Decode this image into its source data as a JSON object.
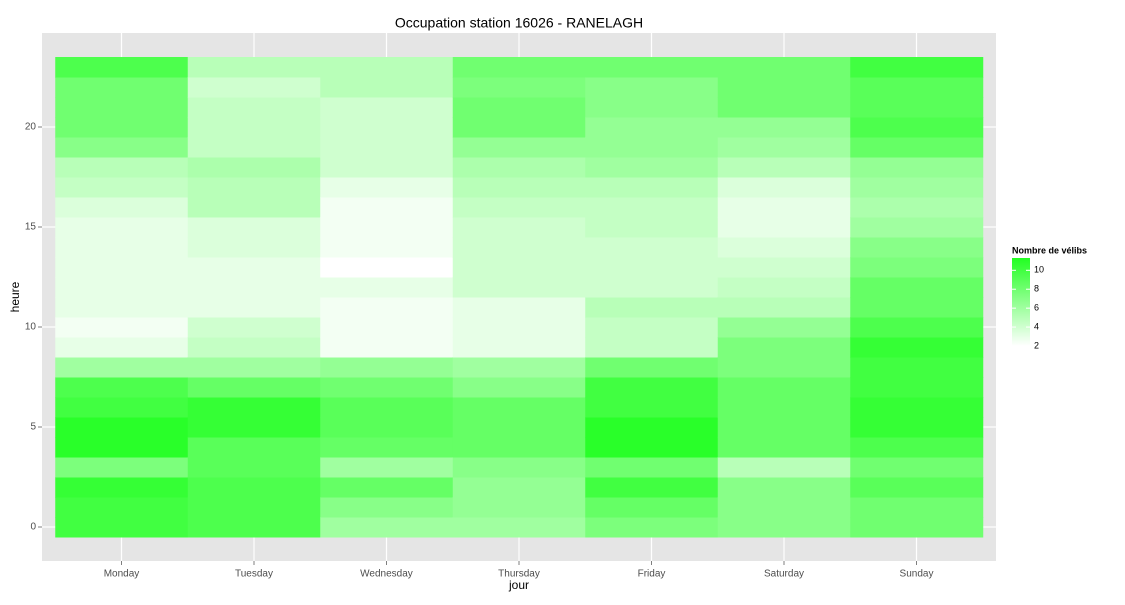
{
  "chart_data": {
    "type": "heatmap",
    "title": "Occupation station 16026 - RANELAGH",
    "x_label": "jour",
    "y_label": "heure",
    "categories": [
      "Monday",
      "Tuesday",
      "Wednesday",
      "Thursday",
      "Friday",
      "Saturday",
      "Sunday"
    ],
    "y": [
      0,
      1,
      2,
      3,
      4,
      5,
      6,
      7,
      8,
      9,
      10,
      11,
      12,
      13,
      14,
      15,
      16,
      17,
      18,
      19,
      20,
      21,
      22,
      23
    ],
    "values": [
      [
        10,
        10,
        10.5,
        7.5,
        11,
        11,
        10,
        9.5,
        6,
        3,
        2.5,
        3,
        3,
        3,
        3,
        3,
        3.5,
        4.5,
        5,
        7,
        8,
        8,
        8,
        9.5
      ],
      [
        9.5,
        9.5,
        9.5,
        9,
        9,
        10.5,
        10.5,
        8.5,
        6,
        4.5,
        4,
        3,
        3,
        3,
        3.5,
        3.5,
        5,
        5,
        5.5,
        4.5,
        4.5,
        4.5,
        4,
        5
      ],
      [
        6,
        7,
        8.5,
        6,
        8.5,
        9,
        9,
        8,
        6.5,
        2.5,
        2.5,
        2.5,
        3,
        2,
        2.5,
        2.5,
        2.5,
        3,
        4,
        4,
        4,
        4,
        5,
        5
      ],
      [
        6,
        6.5,
        6.5,
        7,
        8.5,
        8.5,
        8.5,
        7,
        6,
        3,
        3,
        3,
        4,
        4,
        4,
        4,
        4.5,
        5,
        5.5,
        6.5,
        8,
        8,
        7.5,
        8
      ],
      [
        7.5,
        8.5,
        10,
        8,
        11,
        11,
        10,
        10,
        8,
        4.5,
        4.5,
        5,
        4,
        4,
        4,
        4.5,
        4.5,
        5,
        6,
        6.5,
        6.5,
        7,
        7,
        8
      ],
      [
        7,
        7,
        7,
        5,
        8.5,
        8.5,
        8.5,
        8.5,
        7.5,
        7.5,
        6.5,
        5,
        4.5,
        4,
        3.5,
        3,
        3,
        3.5,
        5,
        6,
        6.5,
        8,
        8,
        8
      ],
      [
        8,
        8,
        9,
        8,
        9.5,
        10.5,
        10.5,
        10,
        10,
        10.5,
        9.5,
        8.5,
        8.5,
        7.5,
        7,
        6,
        5.5,
        6,
        6.5,
        8.5,
        9.5,
        9,
        9,
        10
      ]
    ],
    "ylim": [
      -1.7,
      24.7
    ],
    "yticks": [
      0,
      5,
      10,
      15,
      20
    ],
    "grid": true,
    "legend_title": "Nombre de vélibs",
    "color_low": "#ffffff",
    "color_high": "#22ff22",
    "colorlim": [
      2,
      11.3
    ],
    "colorticks": [
      2,
      4,
      6,
      8,
      10
    ]
  }
}
